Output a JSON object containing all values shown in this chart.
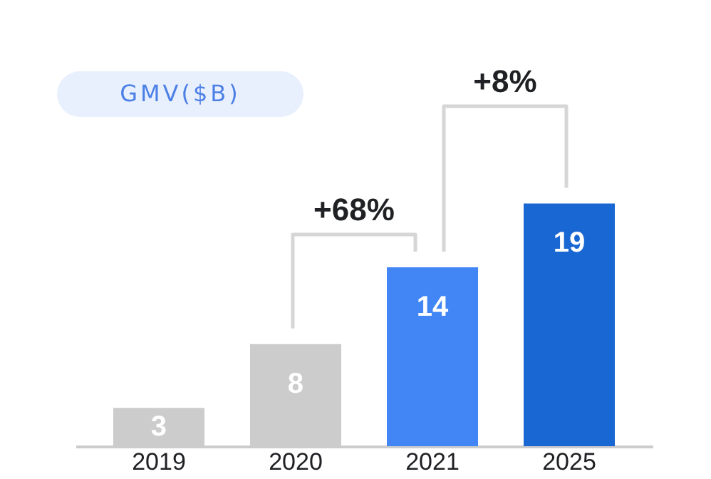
{
  "chart_data": {
    "type": "bar",
    "title": "GMV($B)",
    "categories": [
      "2019",
      "2020",
      "2021",
      "2025"
    ],
    "values": [
      3,
      8,
      14,
      19
    ],
    "colors": [
      "#cccccc",
      "#cccccc",
      "#4285f4",
      "#1967d2"
    ],
    "data_labels": true,
    "tick_labels": "x",
    "annotations": [
      "+68%",
      "+8%"
    ]
  }
}
